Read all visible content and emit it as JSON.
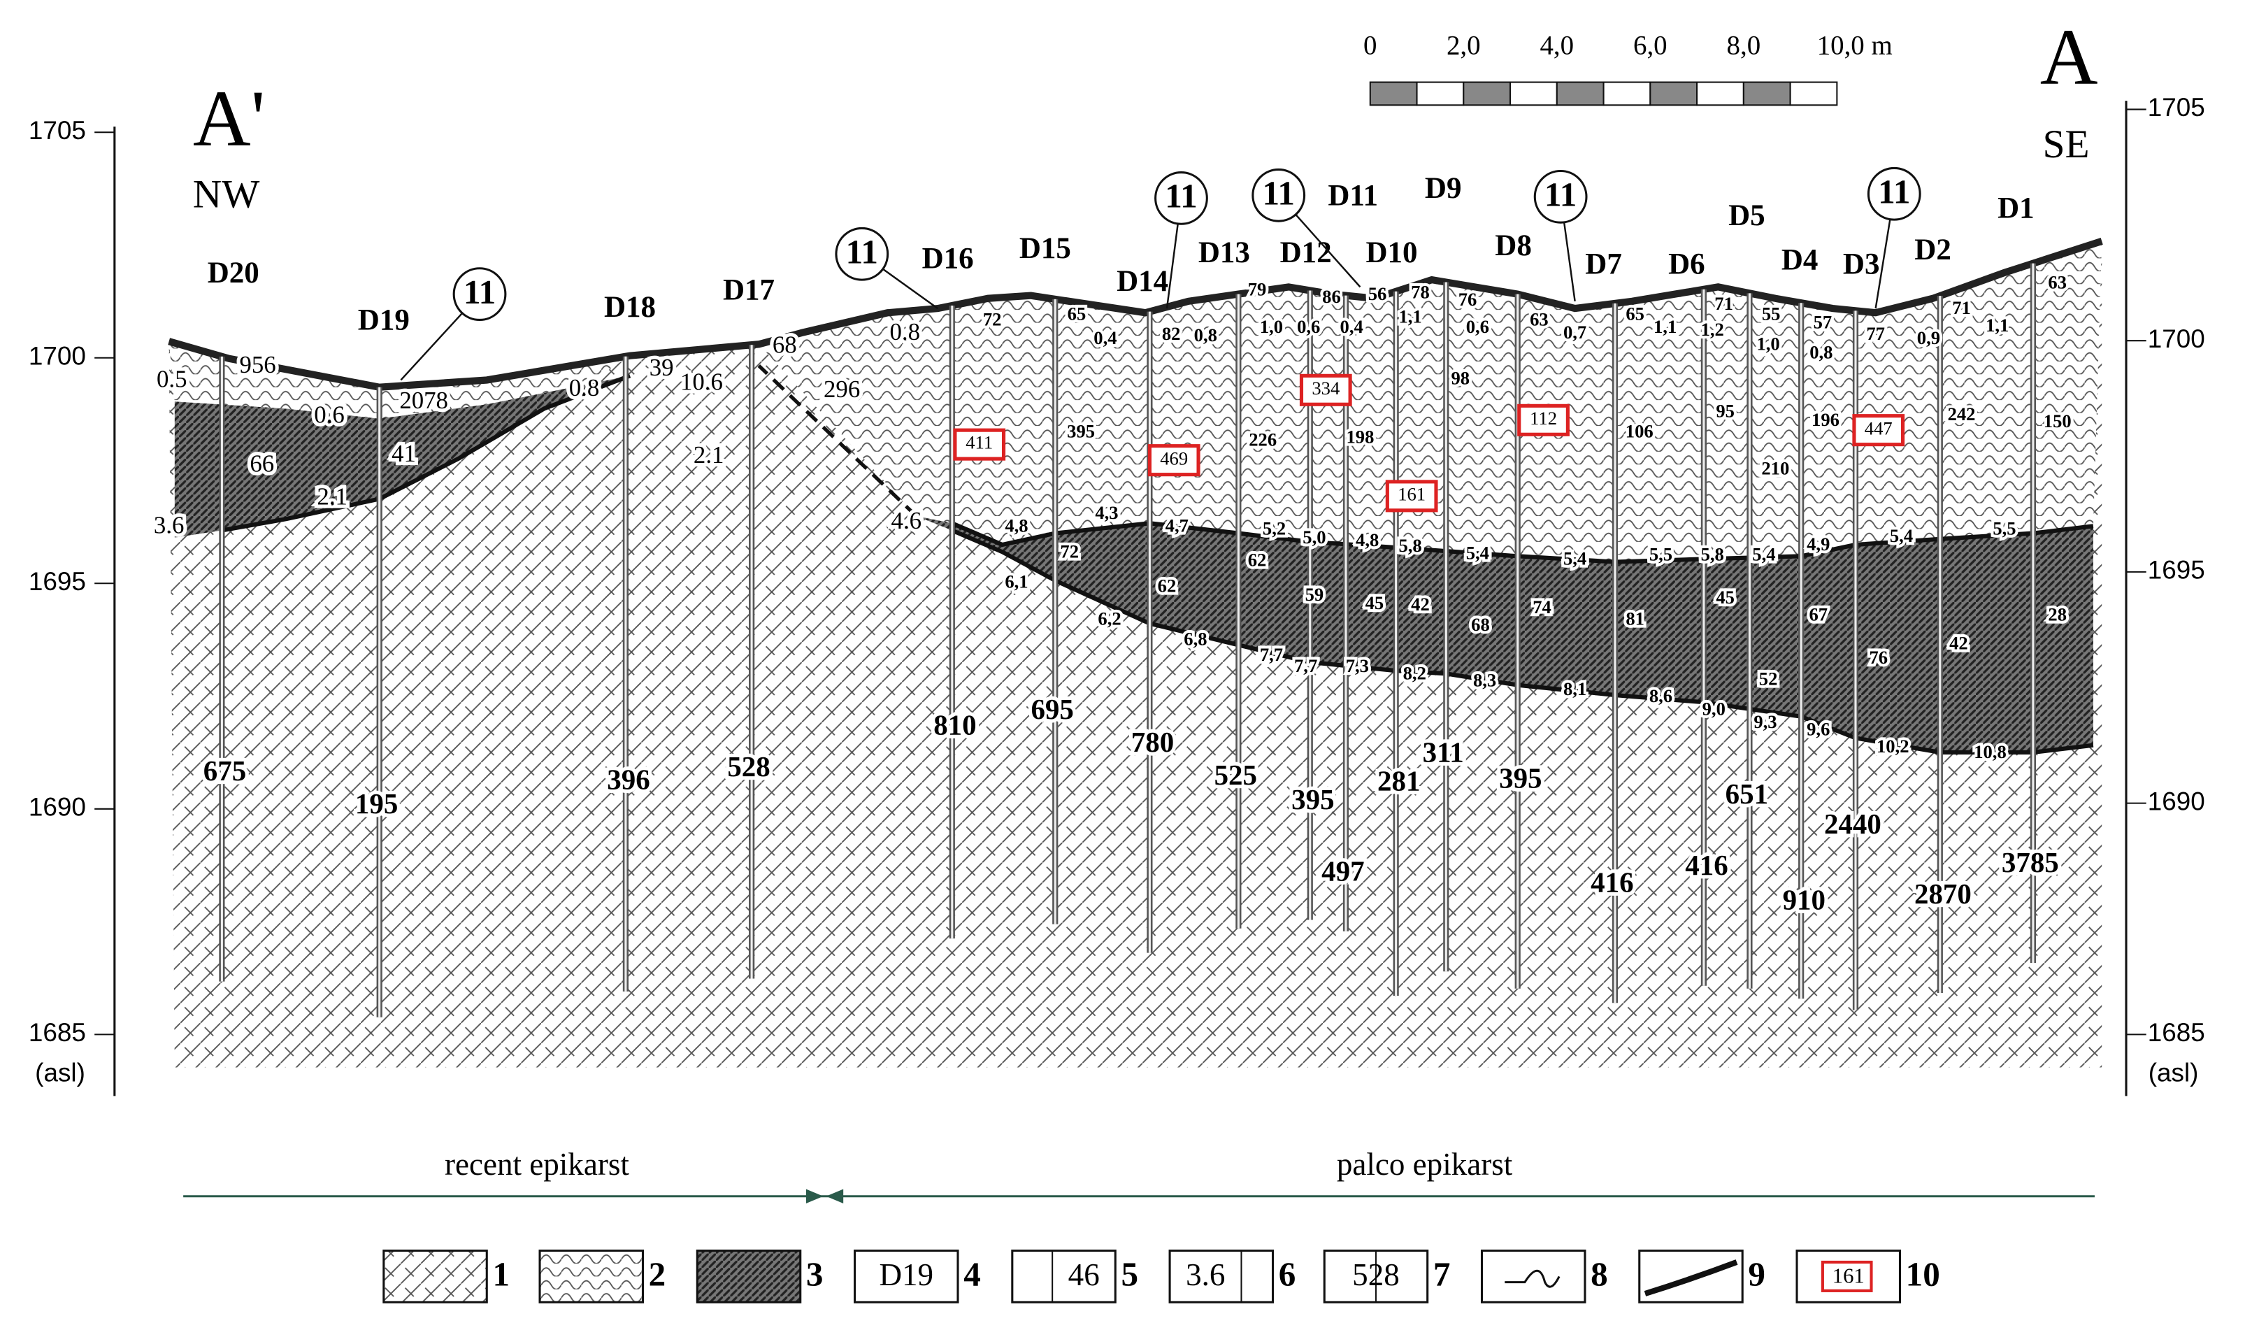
{
  "labels": {
    "left_end": "A'",
    "left_dir": "NW",
    "right_end": "A",
    "right_dir": "SE"
  },
  "scale_bar": {
    "labels": [
      "0",
      "2,0",
      "4,0",
      "6,0",
      "8,0",
      "10,0 m"
    ]
  },
  "left_axis": {
    "ticks": [
      1705,
      1700,
      1695,
      1690,
      1685
    ],
    "unit": "(asl)"
  },
  "right_axis": {
    "ticks": [
      1705,
      1700,
      1695,
      1690,
      1685
    ],
    "unit": "(asl)"
  },
  "boreholes": [
    {
      "name": "D20",
      "value": 675
    },
    {
      "name": "D19",
      "value": 195
    },
    {
      "name": "D18",
      "value": 396
    },
    {
      "name": "D17",
      "value": 528
    },
    {
      "name": "D16",
      "value": 810
    },
    {
      "name": "D15",
      "value": 695
    },
    {
      "name": "D14",
      "value": 780
    },
    {
      "name": "D13",
      "value": 525
    },
    {
      "name": "D12",
      "value": 395
    },
    {
      "name": "D11",
      "value": 497
    },
    {
      "name": "D10",
      "value": 281
    },
    {
      "name": "D9",
      "value": 311
    },
    {
      "name": "D8",
      "value": 395
    },
    {
      "name": "D7",
      "value": 416
    },
    {
      "name": "D6",
      "value": 416
    },
    {
      "name": "D5",
      "value": 651
    },
    {
      "name": "D4",
      "value": 910
    },
    {
      "name": "D3",
      "value": 2440
    },
    {
      "name": "D2",
      "value": 2870
    },
    {
      "name": "D1",
      "value": 3785
    }
  ],
  "markers": [
    11,
    11,
    11,
    11,
    11,
    11
  ],
  "annotations": [
    "0.5",
    "956",
    "0.6",
    "2078",
    "66",
    "41",
    "2.1",
    "3.6",
    "0.8",
    "39",
    "10.6",
    "68",
    "296",
    "2.1",
    "4.6",
    "0.8",
    "72",
    "4,8",
    "6,1",
    "65",
    "395",
    "4,3",
    "72",
    "6,2",
    "0,4",
    "82",
    "4,7",
    "62",
    "6,8",
    "79",
    "0,8",
    "226",
    "5,2",
    "62",
    "7,7",
    "1,0",
    "86",
    "0,6",
    "5,0",
    "59",
    "7,7",
    "56",
    "0,4",
    "198",
    "4,8",
    "45",
    "7,3",
    "78",
    "1,1",
    "5,8",
    "42",
    "8,2",
    "76",
    "0,6",
    "98",
    "5,4",
    "68",
    "8,3",
    "63",
    "0,7",
    "5,4",
    "74",
    "8,1",
    "65",
    "1,1",
    "106",
    "5,5",
    "81",
    "8,6",
    "71",
    "1,2",
    "95",
    "5,8",
    "45",
    "9,0",
    "52",
    "55",
    "1,0",
    "210",
    "5,4",
    "9,3",
    "57",
    "0,8",
    "196",
    "4,9",
    "67",
    "9,6",
    "77",
    "5,4",
    "76",
    "10,2",
    "0,9",
    "71",
    "242",
    "42",
    "10,8",
    "1,1",
    "5,5",
    "63",
    "150",
    "28"
  ],
  "highlighted": [
    411,
    469,
    334,
    161,
    112,
    447
  ],
  "zones": {
    "left": "recent epikarst",
    "right": "palco epikarst"
  },
  "legend": [
    {
      "number": 1
    },
    {
      "number": 2
    },
    {
      "number": 3
    },
    {
      "number": 4,
      "sample": "D19"
    },
    {
      "number": 5,
      "sample": "46"
    },
    {
      "number": 6,
      "sample": "3.6"
    },
    {
      "number": 7,
      "sample": "528"
    },
    {
      "number": 8
    },
    {
      "number": 9
    },
    {
      "number": 10,
      "sample": "161"
    }
  ]
}
